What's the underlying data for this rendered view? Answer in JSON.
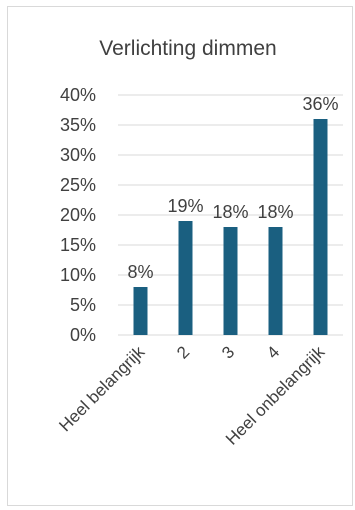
{
  "chart_data": {
    "type": "bar",
    "title": "Verlichting dimmen",
    "categories": [
      "Heel belangrijk",
      "2",
      "3",
      "4",
      "Heel onbelangrijk"
    ],
    "values": [
      8,
      19,
      18,
      18,
      36
    ],
    "data_labels": [
      "8%",
      "19%",
      "18%",
      "18%",
      "36%"
    ],
    "y_ticks": [
      "0%",
      "5%",
      "10%",
      "15%",
      "20%",
      "25%",
      "30%",
      "35%",
      "40%"
    ],
    "ylim": [
      0,
      40
    ],
    "grid": true,
    "legend": "none",
    "colors": {
      "bar": "#1a5f80"
    }
  }
}
